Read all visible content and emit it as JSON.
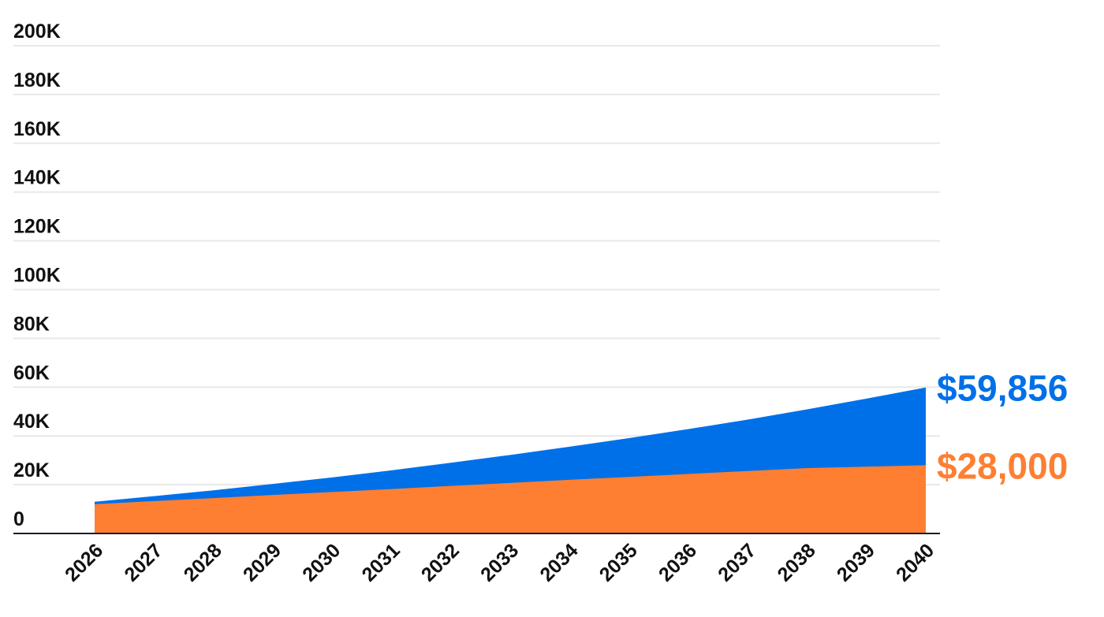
{
  "chart_data": {
    "type": "area",
    "stacked": true,
    "x": [
      2026,
      2027,
      2028,
      2029,
      2030,
      2031,
      2032,
      2033,
      2034,
      2035,
      2036,
      2037,
      2038,
      2039,
      2040
    ],
    "x_tick_labels": [
      "2026",
      "2027",
      "2028",
      "2029",
      "2030",
      "2031",
      "2032",
      "2033",
      "2034",
      "2035",
      "2036",
      "2037",
      "2038",
      "2039",
      "2040"
    ],
    "ylim": [
      0,
      200000
    ],
    "y_tick_values": [
      0,
      20000,
      40000,
      60000,
      80000,
      100000,
      120000,
      140000,
      160000,
      180000,
      200000
    ],
    "y_tick_labels": [
      "0",
      "20K",
      "40K",
      "60K",
      "80K",
      "100K",
      "120K",
      "140K",
      "160K",
      "180K",
      "200K"
    ],
    "grid": true,
    "series": [
      {
        "color": "#0070e8",
        "values": [
          13000,
          15300,
          17700,
          20300,
          23000,
          25900,
          29000,
          32200,
          35600,
          39100,
          42800,
          46700,
          50900,
          55300,
          59856
        ],
        "end_label": "$59,856"
      },
      {
        "color": "#fe7f32",
        "values": [
          12000,
          13300,
          14500,
          15800,
          17000,
          18200,
          19500,
          20700,
          22000,
          23200,
          24400,
          25600,
          26800,
          27400,
          28000
        ],
        "end_label": "$28,000"
      }
    ]
  }
}
